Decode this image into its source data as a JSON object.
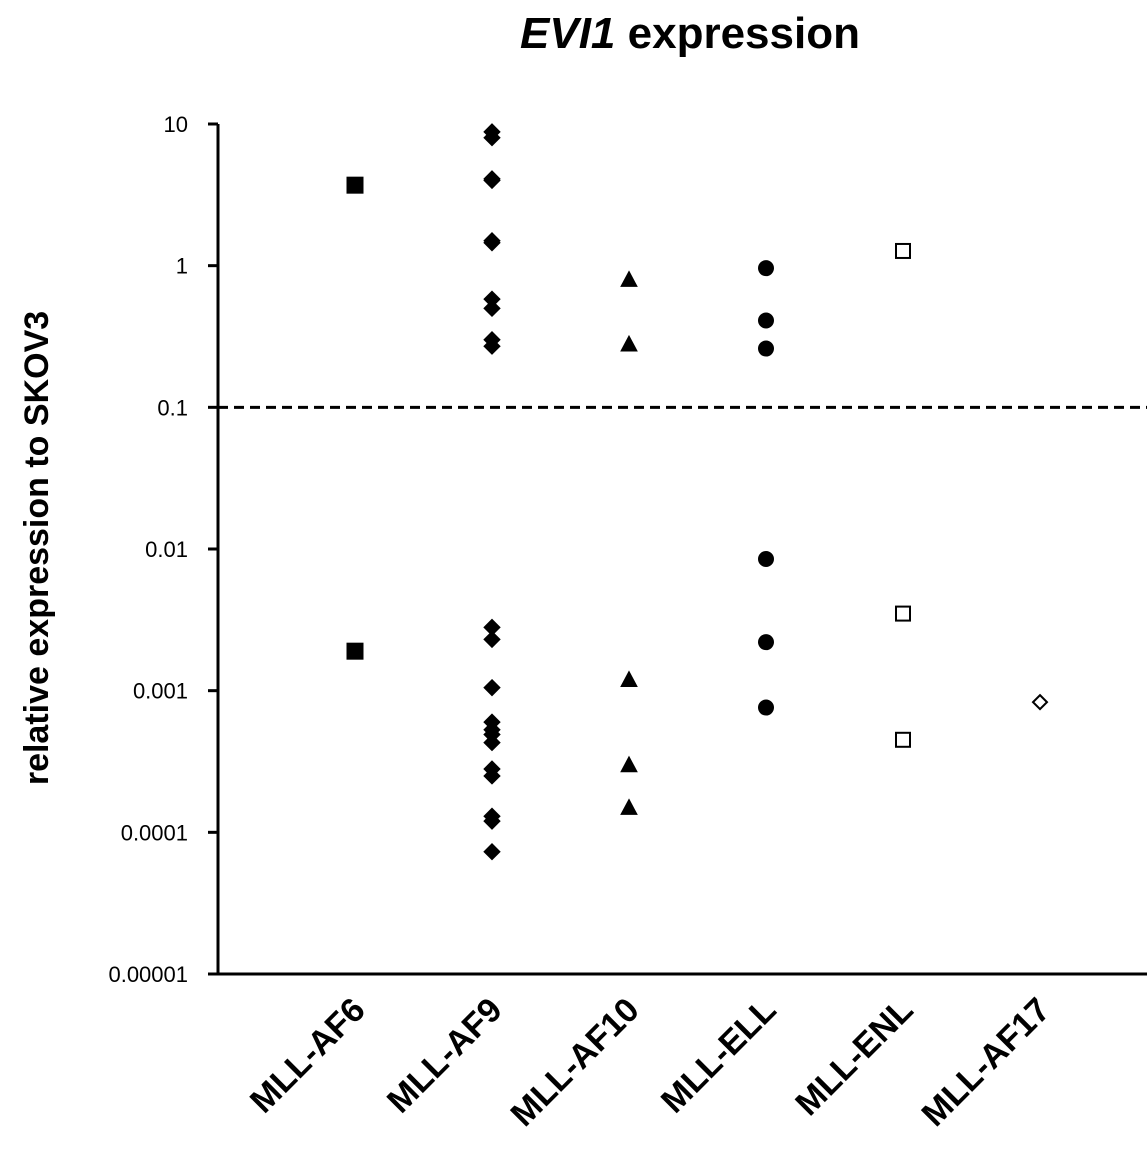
{
  "chart_data": {
    "type": "scatter",
    "title_italic": "EVI1",
    "title_rest": " expression",
    "ylabel": "relative expression to SKOV3",
    "xlabel": "",
    "y_scale": "log",
    "ylim": [
      1e-05,
      10
    ],
    "ytick_labels": [
      "10",
      "1",
      "0.1",
      "0.01",
      "0.001",
      "0.0001",
      "0.00001"
    ],
    "ytick_values": [
      10,
      1,
      0.1,
      0.01,
      0.001,
      0.0001,
      1e-05
    ],
    "categories": [
      "MLL-AF6",
      "MLL-AF9",
      "MLL-AF10",
      "MLL-ELL",
      "MLL-ENL",
      "MLL-AF17"
    ],
    "threshold_line": 0.1,
    "grid": false,
    "legend": "none",
    "series": [
      {
        "category": "MLL-AF6",
        "marker": "square",
        "filled": true,
        "values": [
          3.7,
          0.0019
        ]
      },
      {
        "category": "MLL-AF9",
        "marker": "diamond",
        "filled": true,
        "values": [
          8.8,
          8.0,
          4.1,
          4.0,
          1.5,
          1.45,
          0.58,
          0.5,
          0.3,
          0.27,
          0.0028,
          0.0023,
          0.00105,
          0.0006,
          0.00053,
          0.00049,
          0.00043,
          0.00028,
          0.00025,
          0.00013,
          0.00012,
          7.3e-05
        ]
      },
      {
        "category": "MLL-AF10",
        "marker": "triangle",
        "filled": true,
        "values": [
          0.8,
          0.28,
          0.0012,
          0.0003,
          0.00015
        ]
      },
      {
        "category": "MLL-ELL",
        "marker": "circle",
        "filled": true,
        "values": [
          0.96,
          0.41,
          0.26,
          0.0085,
          0.0022,
          0.00076
        ]
      },
      {
        "category": "MLL-ENL",
        "marker": "square",
        "filled": false,
        "values": [
          1.27,
          0.0035,
          0.00045
        ]
      },
      {
        "category": "MLL-AF17",
        "marker": "diamond",
        "filled": false,
        "values": [
          0.00083
        ]
      }
    ],
    "colors": {
      "marker": "#000000",
      "axis": "#000000",
      "background": "#ffffff"
    }
  }
}
